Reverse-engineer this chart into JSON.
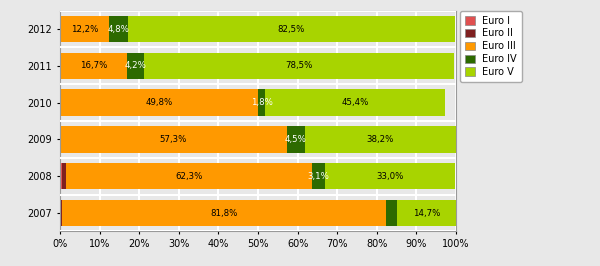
{
  "years": [
    "2007",
    "2008",
    "2009",
    "2010",
    "2011",
    "2012"
  ],
  "euro_I": [
    0.2,
    0.6,
    0.0,
    0.1,
    0.1,
    0.1
  ],
  "euro_II": [
    0.3,
    0.8,
    0.0,
    0.1,
    0.1,
    0.1
  ],
  "euro_III": [
    81.8,
    62.3,
    57.3,
    49.8,
    16.7,
    12.2
  ],
  "euro_IV": [
    2.9,
    3.1,
    4.5,
    1.8,
    4.2,
    4.8
  ],
  "euro_V": [
    14.7,
    33.0,
    38.2,
    45.4,
    78.5,
    82.5
  ],
  "labels_III": [
    "81,8%",
    "62,3%",
    "57,3%",
    "49,8%",
    "16,7%",
    "12,2%"
  ],
  "labels_IV": [
    "",
    "3,1%",
    "4,5%",
    "1,8%",
    "4,2%",
    "4,8%"
  ],
  "labels_V": [
    "14,7%",
    "33,0%",
    "38,2%",
    "45,4%",
    "78,5%",
    "82,5%"
  ],
  "color_I": "#e05050",
  "color_II": "#7f2020",
  "color_III": "#ff9900",
  "color_IV": "#2d6a00",
  "color_V": "#a8d400",
  "background": "#e8e8e8",
  "grid_color": "#ffffff",
  "legend_labels": [
    "Euro I",
    "Euro II",
    "Euro III",
    "Euro IV",
    "Euro V"
  ]
}
